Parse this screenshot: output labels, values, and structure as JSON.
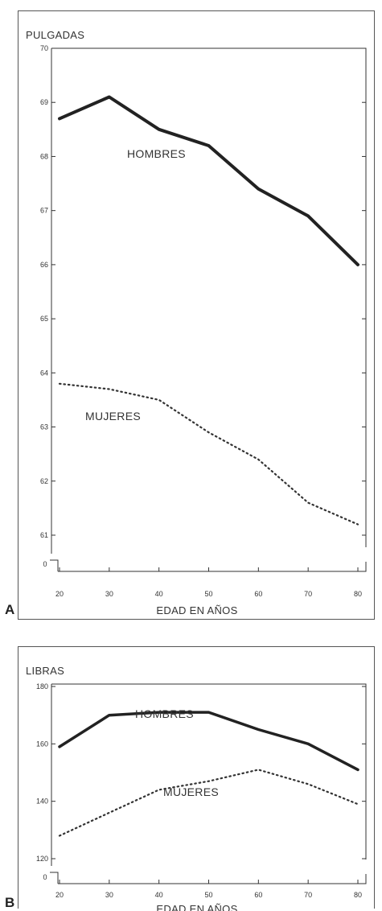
{
  "chart_data": [
    {
      "panel": "A",
      "type": "line",
      "title": "",
      "ylabel": "PULGADAS",
      "xlabel": "EDAD EN AÑOS",
      "x": [
        20,
        30,
        40,
        50,
        60,
        70,
        80
      ],
      "xlim": [
        20,
        80
      ],
      "ylim": [
        61,
        70
      ],
      "yticks": [
        61,
        62,
        63,
        64,
        65,
        66,
        67,
        68,
        69,
        70
      ],
      "y_zero_tick": "0",
      "grid": false,
      "series": [
        {
          "name": "HOMBRES",
          "style": "solid",
          "color": "#222222",
          "values": [
            68.7,
            69.1,
            68.5,
            68.2,
            67.4,
            66.9,
            66.0
          ]
        },
        {
          "name": "MUJERES",
          "style": "dotted",
          "color": "#333333",
          "values": [
            63.8,
            63.7,
            63.5,
            62.9,
            62.4,
            61.6,
            61.2
          ]
        }
      ]
    },
    {
      "panel": "B",
      "type": "line",
      "title": "",
      "ylabel": "LIBRAS",
      "xlabel": "EDAD EN AÑOS",
      "x": [
        20,
        30,
        40,
        50,
        60,
        70,
        80
      ],
      "xlim": [
        20,
        80
      ],
      "ylim": [
        120,
        180
      ],
      "yticks": [
        120,
        140,
        160,
        180
      ],
      "y_zero_tick": "0",
      "grid": false,
      "series": [
        {
          "name": "HOMBRES",
          "style": "solid",
          "color": "#222222",
          "values": [
            159,
            170,
            171,
            171,
            165,
            160,
            151
          ]
        },
        {
          "name": "MUJERES",
          "style": "dotted",
          "color": "#333333",
          "values": [
            128,
            136,
            144,
            147,
            151,
            146,
            139
          ]
        }
      ]
    }
  ],
  "panel_letters": {
    "a": "A",
    "b": "B"
  }
}
